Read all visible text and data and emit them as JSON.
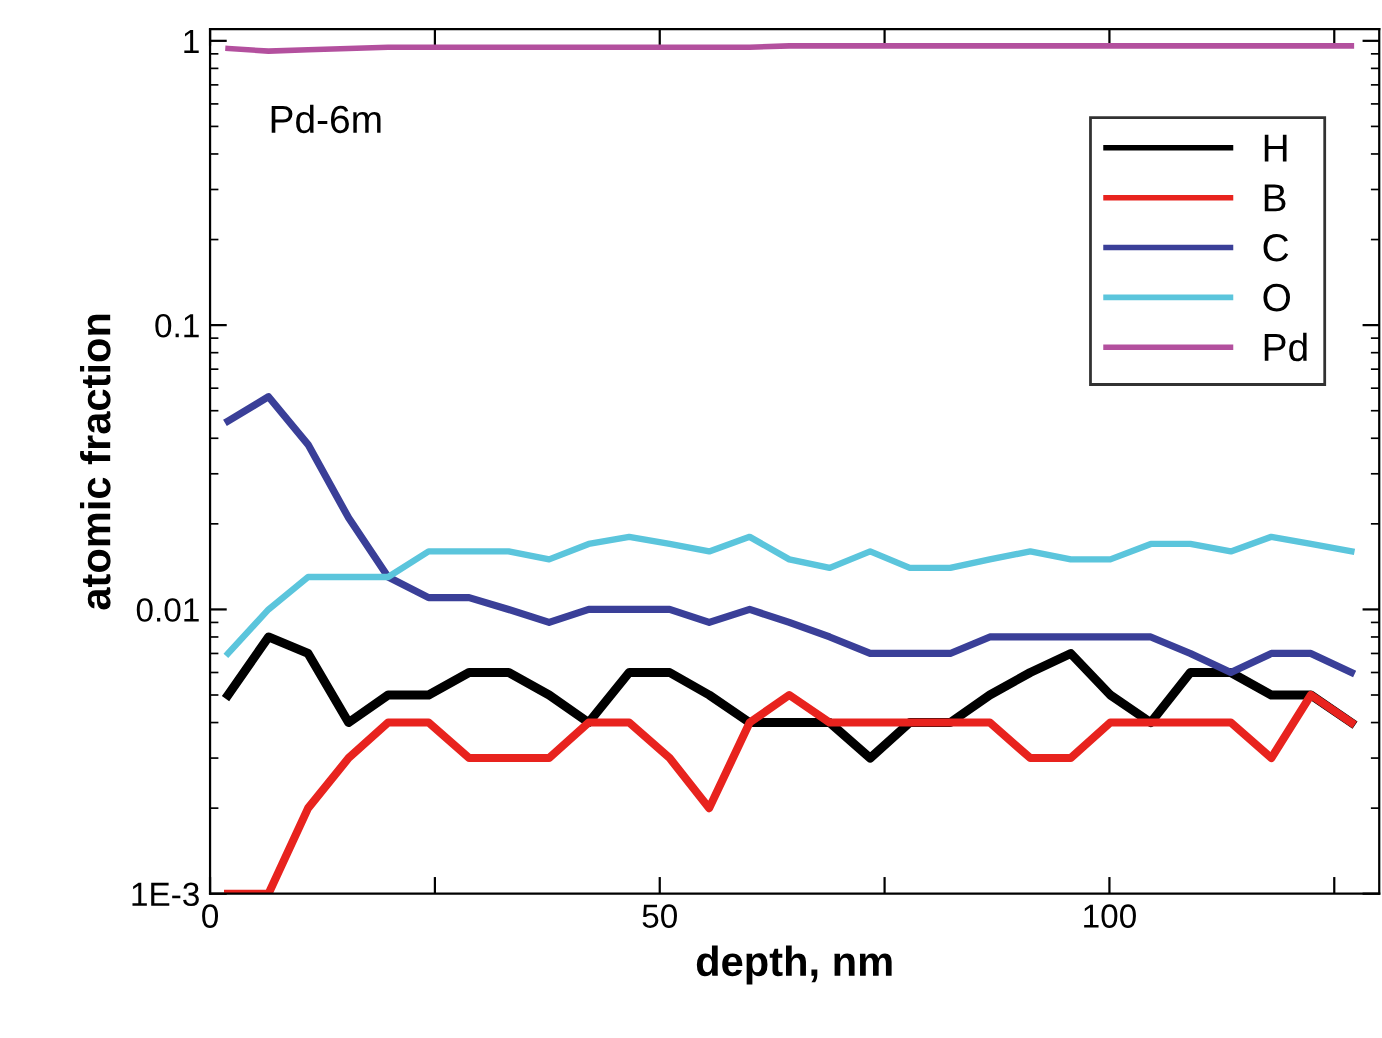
{
  "chart_data": {
    "type": "line",
    "xlabel": "depth, nm",
    "ylabel": "atomic fraction",
    "annotations": [
      "Pd-6m"
    ],
    "x": [
      2.0,
      6.5,
      10.9,
      15.4,
      19.8,
      24.3,
      28.8,
      33.2,
      37.7,
      42.1,
      46.6,
      51.1,
      55.5,
      60.0,
      64.4,
      68.9,
      73.4,
      77.8,
      82.3,
      86.7,
      91.2,
      95.7,
      100.1,
      104.6,
      109.0,
      113.5,
      118.0,
      122.4,
      126.9
    ],
    "series": [
      {
        "name": "H",
        "color": "#000000",
        "values": [
          0.005,
          0.008,
          0.007,
          0.004,
          0.005,
          0.005,
          0.006,
          0.006,
          0.005,
          0.004,
          0.006,
          0.006,
          0.005,
          0.004,
          0.004,
          0.004,
          0.003,
          0.004,
          0.004,
          0.005,
          0.006,
          0.007,
          0.005,
          0.004,
          0.006,
          0.006,
          0.005,
          0.005,
          0.004
        ]
      },
      {
        "name": "B",
        "color": "#e8231e",
        "values": [
          0.001,
          0.001,
          0.002,
          0.003,
          0.004,
          0.004,
          0.003,
          0.003,
          0.003,
          0.004,
          0.004,
          0.003,
          0.002,
          0.004,
          0.005,
          0.004,
          0.004,
          0.004,
          0.004,
          0.004,
          0.003,
          0.003,
          0.004,
          0.004,
          0.004,
          0.004,
          0.003,
          0.005,
          0.004
        ]
      },
      {
        "name": "C",
        "color": "#3a3f98",
        "values": [
          0.046,
          0.056,
          0.038,
          0.021,
          0.013,
          0.011,
          0.011,
          0.01,
          0.009,
          0.01,
          0.01,
          0.01,
          0.009,
          0.01,
          0.009,
          0.008,
          0.007,
          0.007,
          0.007,
          0.008,
          0.008,
          0.008,
          0.008,
          0.008,
          0.007,
          0.006,
          0.007,
          0.007,
          0.006
        ]
      },
      {
        "name": "O",
        "color": "#5bc5dc",
        "values": [
          0.007,
          0.01,
          0.013,
          0.013,
          0.013,
          0.016,
          0.016,
          0.016,
          0.015,
          0.017,
          0.018,
          0.017,
          0.016,
          0.018,
          0.015,
          0.014,
          0.016,
          0.014,
          0.014,
          0.015,
          0.016,
          0.015,
          0.015,
          0.017,
          0.017,
          0.016,
          0.018,
          0.017,
          0.016
        ]
      },
      {
        "name": "Pd",
        "color": "#b3509e",
        "values": [
          0.94,
          0.92,
          0.93,
          0.94,
          0.95,
          0.95,
          0.95,
          0.95,
          0.95,
          0.95,
          0.95,
          0.95,
          0.95,
          0.95,
          0.96,
          0.96,
          0.96,
          0.96,
          0.96,
          0.96,
          0.96,
          0.96,
          0.96,
          0.96,
          0.96,
          0.96,
          0.96,
          0.96,
          0.96
        ]
      }
    ],
    "xlim": [
      0,
      130
    ],
    "xticks": [
      0,
      {
        "value": 25,
        "label": null
      },
      50,
      {
        "value": 75,
        "label": null
      },
      100,
      {
        "value": 125,
        "label": null
      }
    ],
    "ylim": [
      0.001,
      1.1
    ],
    "yticks": [
      {
        "value": 0.001,
        "label": "1E-3"
      },
      0.01,
      0.1,
      1
    ],
    "log": "y",
    "grid": false,
    "legend": "top right",
    "marker": "none",
    "line_style": "solid"
  }
}
